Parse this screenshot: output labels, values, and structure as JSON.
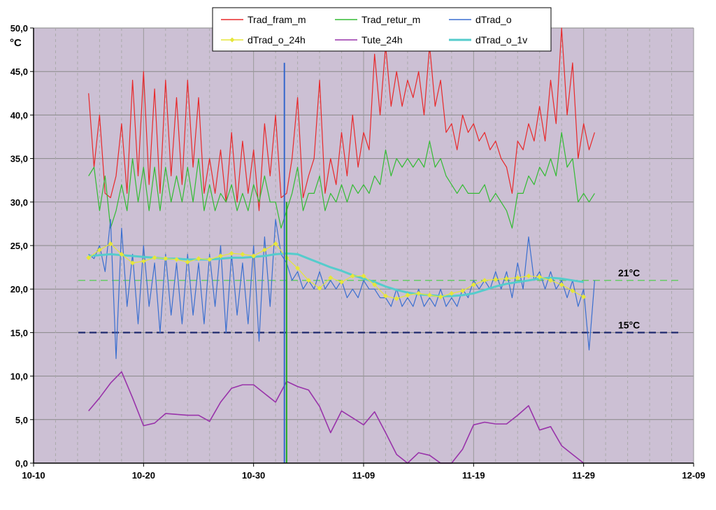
{
  "chart_data": {
    "type": "line",
    "title": "",
    "ylabel_unit": "°C",
    "xlim": [
      "10-10",
      "12-09"
    ],
    "ylim": [
      0,
      50
    ],
    "grid": true,
    "legend_placement": "top-center",
    "background_color": "#CCC0D4",
    "x_ticks": [
      "10-10",
      "10-20",
      "10-30",
      "11-09",
      "11-19",
      "11-29",
      "12-09"
    ],
    "y_ticks": [
      "0,0",
      "5,0",
      "10,0",
      "15,0",
      "20,0",
      "25,0",
      "30,0",
      "35,0",
      "40,0",
      "45,0",
      "50,0"
    ],
    "reference_lines": [
      {
        "label": "21°C",
        "value": 21,
        "color": "#66CC66",
        "style": "dashed"
      },
      {
        "label": "15°C",
        "value": 15,
        "color": "#1F2A6E",
        "style": "dashed"
      }
    ],
    "annotations": [
      {
        "label": "green vertical line",
        "x": "11-02",
        "color": "#22AA22"
      },
      {
        "label": "blue vertical line",
        "x": "11-01.8",
        "color": "#3366CC"
      }
    ],
    "series": [
      {
        "name": "Trad_fram_m",
        "color": "#E8282A",
        "x": [
          "10-15.0",
          "10-15.5",
          "10-16.0",
          "10-16.5",
          "10-17.0",
          "10-17.5",
          "10-18.0",
          "10-18.5",
          "10-19.0",
          "10-19.5",
          "10-20.0",
          "10-20.5",
          "10-21.0",
          "10-21.5",
          "10-22.0",
          "10-22.5",
          "10-23.0",
          "10-23.5",
          "10-24.0",
          "10-24.5",
          "10-25.0",
          "10-25.5",
          "10-26.0",
          "10-26.5",
          "10-27.0",
          "10-27.5",
          "10-28.0",
          "10-28.5",
          "10-29.0",
          "10-29.5",
          "10-30.0",
          "10-30.5",
          "10-31.0",
          "10-31.5",
          "11-01.0",
          "11-01.5",
          "11-02.0",
          "11-02.5",
          "11-03.0",
          "11-03.5",
          "11-04.0",
          "11-04.5",
          "11-05.0",
          "11-05.5",
          "11-06.0",
          "11-06.5",
          "11-07.0",
          "11-07.5",
          "11-08.0",
          "11-08.5",
          "11-09.0",
          "11-09.5",
          "11-10.0",
          "11-10.5",
          "11-11.0",
          "11-11.5",
          "11-12.0",
          "11-12.5",
          "11-13.0",
          "11-13.5",
          "11-14.0",
          "11-14.5",
          "11-15.0",
          "11-15.5",
          "11-16.0",
          "11-16.5",
          "11-17.0",
          "11-17.5",
          "11-18.0",
          "11-18.5",
          "11-19.0",
          "11-19.5",
          "11-20.0",
          "11-20.5",
          "11-21.0",
          "11-21.5",
          "11-22.0",
          "11-22.5",
          "11-23.0",
          "11-23.5",
          "11-24.0",
          "11-24.5",
          "11-25.0",
          "11-25.5",
          "11-26.0",
          "11-26.5",
          "11-27.0",
          "11-27.5",
          "11-28.0",
          "11-28.5",
          "11-29.0",
          "11-29.5",
          "11-30.0"
        ],
        "values": [
          42.5,
          34,
          40,
          31,
          30.5,
          33,
          39,
          31,
          44,
          33,
          45,
          32,
          43,
          31,
          44,
          33,
          42,
          32,
          44,
          34,
          42,
          31,
          35,
          31,
          36,
          30,
          38,
          30,
          37,
          31,
          36,
          29,
          39,
          33,
          40,
          30.5,
          31,
          35,
          42,
          30.5,
          33,
          35,
          44,
          31,
          35,
          32,
          38,
          33,
          40,
          34,
          38,
          36,
          47,
          40,
          48,
          41,
          45,
          41,
          44,
          42,
          45,
          40,
          48,
          41,
          44,
          38,
          39,
          36,
          40,
          38,
          39,
          37,
          38,
          36,
          37,
          35,
          34,
          31,
          37,
          36,
          39,
          37,
          41,
          37,
          44,
          39,
          50,
          40,
          46,
          35,
          39,
          36,
          38
        ]
      },
      {
        "name": "Trad_retur_m",
        "color": "#33BB33",
        "x": [
          "10-15.0",
          "10-15.5",
          "10-16.0",
          "10-16.5",
          "10-17.0",
          "10-17.5",
          "10-18.0",
          "10-18.5",
          "10-19.0",
          "10-19.5",
          "10-20.0",
          "10-20.5",
          "10-21.0",
          "10-21.5",
          "10-22.0",
          "10-22.5",
          "10-23.0",
          "10-23.5",
          "10-24.0",
          "10-24.5",
          "10-25.0",
          "10-25.5",
          "10-26.0",
          "10-26.5",
          "10-27.0",
          "10-27.5",
          "10-28.0",
          "10-28.5",
          "10-29.0",
          "10-29.5",
          "10-30.0",
          "10-30.5",
          "10-31.0",
          "10-31.5",
          "11-01.0",
          "11-01.5",
          "11-02.0",
          "11-02.5",
          "11-03.0",
          "11-03.5",
          "11-04.0",
          "11-04.5",
          "11-05.0",
          "11-05.5",
          "11-06.0",
          "11-06.5",
          "11-07.0",
          "11-07.5",
          "11-08.0",
          "11-08.5",
          "11-09.0",
          "11-09.5",
          "11-10.0",
          "11-10.5",
          "11-11.0",
          "11-11.5",
          "11-12.0",
          "11-12.5",
          "11-13.0",
          "11-13.5",
          "11-14.0",
          "11-14.5",
          "11-15.0",
          "11-15.5",
          "11-16.0",
          "11-16.5",
          "11-17.0",
          "11-17.5",
          "11-18.0",
          "11-18.5",
          "11-19.0",
          "11-19.5",
          "11-20.0",
          "11-20.5",
          "11-21.0",
          "11-21.5",
          "11-22.0",
          "11-22.5",
          "11-23.0",
          "11-23.5",
          "11-24.0",
          "11-24.5",
          "11-25.0",
          "11-25.5",
          "11-26.0",
          "11-26.5",
          "11-27.0",
          "11-27.5",
          "11-28.0",
          "11-28.5",
          "11-29.0",
          "11-29.5",
          "11-30.0"
        ],
        "values": [
          33,
          34,
          29,
          33,
          27,
          29,
          32,
          29,
          35,
          30,
          34,
          29,
          34,
          29,
          34,
          30,
          33,
          30,
          34,
          30,
          35,
          29,
          32,
          29,
          31,
          30,
          32,
          29,
          31,
          29,
          32,
          30,
          33,
          30,
          30,
          27,
          29,
          31,
          34,
          29,
          31,
          31,
          33,
          29,
          31,
          30,
          32,
          30,
          32,
          31,
          32,
          31,
          33,
          32,
          36,
          33,
          35,
          34,
          35,
          34,
          35,
          34,
          37,
          34,
          35,
          33,
          32,
          31,
          32,
          31,
          31,
          31,
          32,
          30,
          31,
          30,
          29,
          27,
          31,
          31,
          33,
          32,
          34,
          33,
          35,
          33,
          38,
          34,
          35,
          30,
          31,
          30,
          31
        ]
      },
      {
        "name": "dTrad_o",
        "color": "#3A6FD0",
        "x": [
          "10-15.0",
          "10-15.5",
          "10-16.0",
          "10-16.5",
          "10-17.0",
          "10-17.5",
          "10-18.0",
          "10-18.5",
          "10-19.0",
          "10-19.5",
          "10-20.0",
          "10-20.5",
          "10-21.0",
          "10-21.5",
          "10-22.0",
          "10-22.5",
          "10-23.0",
          "10-23.5",
          "10-24.0",
          "10-24.5",
          "10-25.0",
          "10-25.5",
          "10-26.0",
          "10-26.5",
          "10-27.0",
          "10-27.5",
          "10-28.0",
          "10-28.5",
          "10-29.0",
          "10-29.5",
          "10-30.0",
          "10-30.5",
          "10-31.0",
          "10-31.5",
          "11-01.0",
          "11-01.5",
          "11-02.0",
          "11-02.5",
          "11-03.0",
          "11-03.5",
          "11-04.0",
          "11-04.5",
          "11-05.0",
          "11-05.5",
          "11-06.0",
          "11-06.5",
          "11-07.0",
          "11-07.5",
          "11-08.0",
          "11-08.5",
          "11-09.0",
          "11-09.5",
          "11-10.0",
          "11-10.5",
          "11-11.0",
          "11-11.5",
          "11-12.0",
          "11-12.5",
          "11-13.0",
          "11-13.5",
          "11-14.0",
          "11-14.5",
          "11-15.0",
          "11-15.5",
          "11-16.0",
          "11-16.5",
          "11-17.0",
          "11-17.5",
          "11-18.0",
          "11-18.5",
          "11-19.0",
          "11-19.5",
          "11-20.0",
          "11-20.5",
          "11-21.0",
          "11-21.5",
          "11-22.0",
          "11-22.5",
          "11-23.0",
          "11-23.5",
          "11-24.0",
          "11-24.5",
          "11-25.0",
          "11-25.5",
          "11-26.0",
          "11-26.5",
          "11-27.0",
          "11-27.5",
          "11-28.0",
          "11-28.5",
          "11-29.0",
          "11-29.5",
          "11-30.0"
        ],
        "values": [
          24,
          23.5,
          25,
          22,
          28,
          12,
          27,
          18,
          24,
          16,
          25,
          18,
          23,
          15,
          24,
          17,
          23,
          16,
          24,
          17,
          23,
          16,
          24,
          18,
          25,
          15,
          24,
          17,
          23,
          16,
          25,
          14,
          26,
          18,
          28,
          24,
          23,
          21,
          22,
          20,
          21,
          20,
          22,
          20,
          21,
          20,
          21,
          19,
          20,
          19,
          21,
          20,
          20,
          19,
          19,
          18,
          20,
          18,
          19,
          18,
          20,
          18,
          19,
          18,
          20,
          18,
          19,
          18,
          20,
          19,
          21,
          20,
          21,
          20,
          22,
          20,
          22,
          19,
          23,
          20,
          26,
          21,
          22,
          20,
          22,
          20,
          21,
          19,
          21,
          18,
          20,
          13,
          21
        ]
      },
      {
        "name": "dTrad_o_24h",
        "color": "#E6E63A",
        "x": [
          "10-15",
          "10-16",
          "10-17",
          "10-18",
          "10-19",
          "10-20",
          "10-21",
          "10-22",
          "10-23",
          "10-24",
          "10-25",
          "10-26",
          "10-27",
          "10-28",
          "10-29",
          "10-30",
          "10-31",
          "11-01",
          "11-02",
          "11-03",
          "11-04",
          "11-05",
          "11-06",
          "11-07",
          "11-08",
          "11-09",
          "11-10",
          "11-11",
          "11-12",
          "11-13",
          "11-14",
          "11-15",
          "11-16",
          "11-17",
          "11-18",
          "11-19",
          "11-20",
          "11-21",
          "11-22",
          "11-23",
          "11-24",
          "11-25",
          "11-26",
          "11-27",
          "11-28",
          "11-29"
        ],
        "values": [
          23.6,
          24.5,
          25.2,
          24,
          23,
          23.2,
          23.6,
          23.5,
          23.4,
          23.1,
          23.5,
          23.4,
          23.8,
          24.1,
          24.0,
          23.8,
          24.5,
          25.2,
          23.6,
          22.4,
          21.0,
          20.1,
          21.3,
          20.8,
          21.5,
          21.5,
          20.5,
          19.2,
          18.9,
          19.3,
          19.5,
          19.3,
          19.1,
          19.5,
          19.8,
          20.5,
          21.0,
          21.1,
          21.2,
          21.3,
          21.5,
          21.4,
          21.0,
          20.5,
          19.8,
          19.1
        ]
      },
      {
        "name": "Tute_24h",
        "color": "#9933AA",
        "x": [
          "10-15",
          "10-16",
          "10-17",
          "10-18",
          "10-19",
          "10-20",
          "10-21",
          "10-22",
          "10-23",
          "10-24",
          "10-25",
          "10-26",
          "10-27",
          "10-28",
          "10-29",
          "10-30",
          "10-31",
          "11-01",
          "11-02",
          "11-03",
          "11-04",
          "11-05",
          "11-06",
          "11-07",
          "11-08",
          "11-09",
          "11-10",
          "11-11",
          "11-12",
          "11-13",
          "11-14",
          "11-15",
          "11-16",
          "11-17",
          "11-18",
          "11-19",
          "11-20",
          "11-21",
          "11-22",
          "11-23",
          "11-24",
          "11-25",
          "11-26",
          "11-27",
          "11-28",
          "11-29"
        ],
        "values": [
          6.0,
          7.5,
          9.2,
          10.5,
          7.5,
          4.3,
          4.6,
          5.7,
          5.6,
          5.5,
          5.5,
          4.8,
          7.0,
          8.6,
          9.0,
          9.0,
          8.0,
          7.0,
          9.4,
          8.8,
          8.4,
          6.5,
          3.5,
          6.0,
          5.2,
          4.4,
          5.9,
          3.5,
          1.0,
          0.0,
          1.2,
          0.9,
          0.0,
          0.0,
          1.6,
          4.4,
          4.7,
          4.5,
          4.5,
          5.5,
          6.6,
          3.8,
          4.2,
          2.0,
          1.0,
          0.0
        ]
      },
      {
        "name": "dTrad_o_1v",
        "color": "#55CCCC",
        "x": [
          "10-15",
          "10-16",
          "10-17",
          "10-18",
          "10-19",
          "10-20",
          "10-21",
          "10-22",
          "10-23",
          "10-24",
          "10-25",
          "10-26",
          "10-27",
          "10-28",
          "10-29",
          "10-30",
          "10-31",
          "11-01",
          "11-02",
          "11-03",
          "11-04",
          "11-05",
          "11-06",
          "11-07",
          "11-08",
          "11-09",
          "11-10",
          "11-11",
          "11-12",
          "11-13",
          "11-14",
          "11-15",
          "11-16",
          "11-17",
          "11-18",
          "11-19",
          "11-20",
          "11-21",
          "11-22",
          "11-23",
          "11-24",
          "11-25",
          "11-26",
          "11-27",
          "11-28",
          "11-29"
        ],
        "values": [
          23.8,
          23.9,
          24.0,
          23.9,
          23.8,
          23.7,
          23.6,
          23.5,
          23.5,
          23.4,
          23.4,
          23.4,
          23.5,
          23.6,
          23.6,
          23.7,
          23.8,
          24.0,
          24.1,
          24.0,
          23.5,
          23.0,
          22.5,
          22.1,
          21.6,
          21.2,
          20.8,
          20.3,
          19.9,
          19.6,
          19.4,
          19.3,
          19.2,
          19.2,
          19.3,
          19.5,
          19.9,
          20.3,
          20.6,
          20.8,
          21.0,
          21.2,
          21.3,
          21.2,
          21.0,
          20.8
        ]
      }
    ]
  }
}
